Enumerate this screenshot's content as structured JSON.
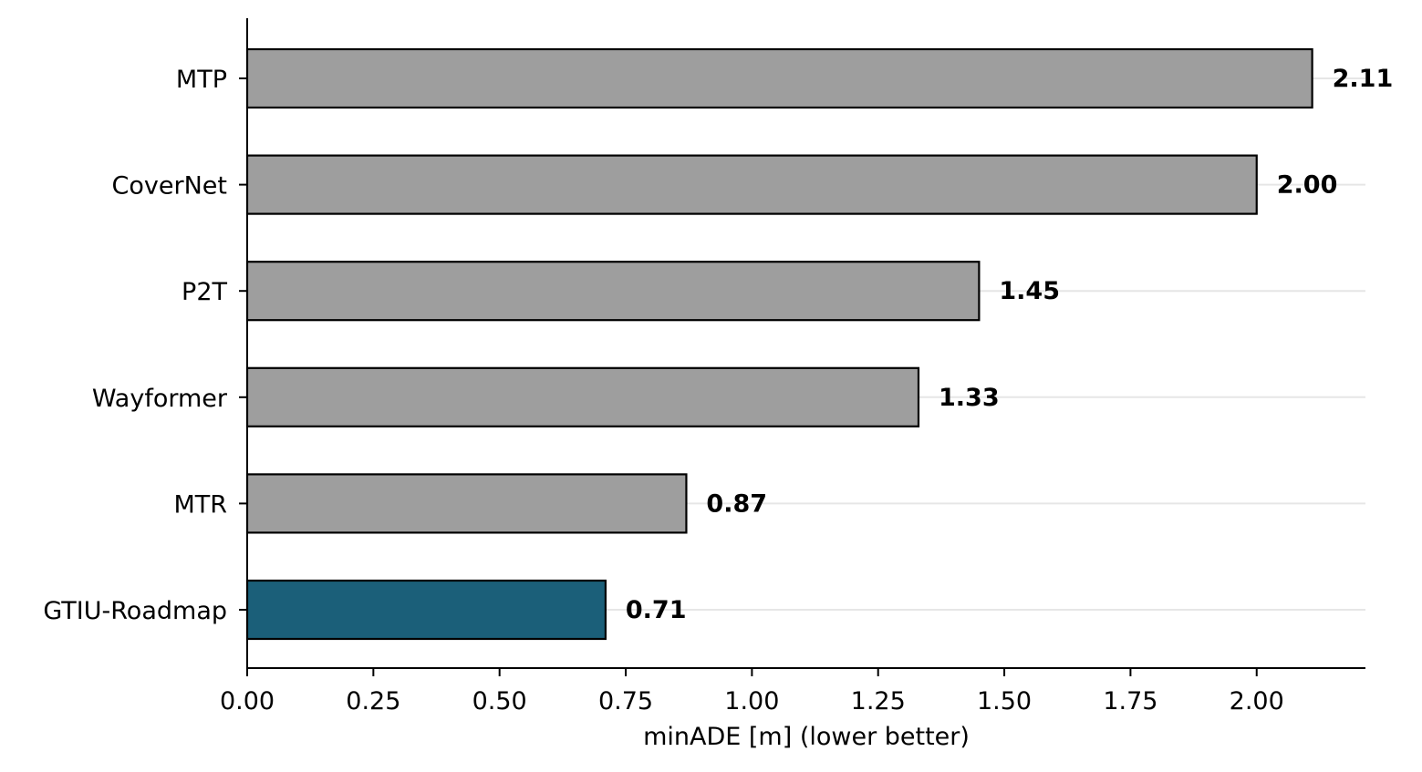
{
  "chart_data": {
    "type": "bar",
    "orientation": "horizontal",
    "categories": [
      "MTP",
      "CoverNet",
      "P2T",
      "Wayformer",
      "MTR",
      "GTIU-Roadmap"
    ],
    "values": [
      2.11,
      2.0,
      1.45,
      1.33,
      0.87,
      0.71
    ],
    "value_labels": [
      "2.11",
      "2.00",
      "1.45",
      "1.33",
      "0.87",
      "0.71"
    ],
    "xlabel": "minADE [m] (lower better)",
    "ylabel": "",
    "title": "",
    "xlim": [
      0,
      2.2155
    ],
    "xticks": [
      0.0,
      0.25,
      0.5,
      0.75,
      1.0,
      1.25,
      1.5,
      1.75,
      2.0
    ],
    "xtick_labels": [
      "0.00",
      "0.25",
      "0.50",
      "0.75",
      "1.00",
      "1.25",
      "1.50",
      "1.75",
      "2.00"
    ],
    "grid": "x-horizontal-light",
    "colors": {
      "default_bar": "#9e9e9e",
      "highlight_bar": "#1b5f79",
      "bar_edge": "#000000",
      "grid": "#e6e6e6"
    },
    "highlight_category": "GTIU-Roadmap"
  }
}
